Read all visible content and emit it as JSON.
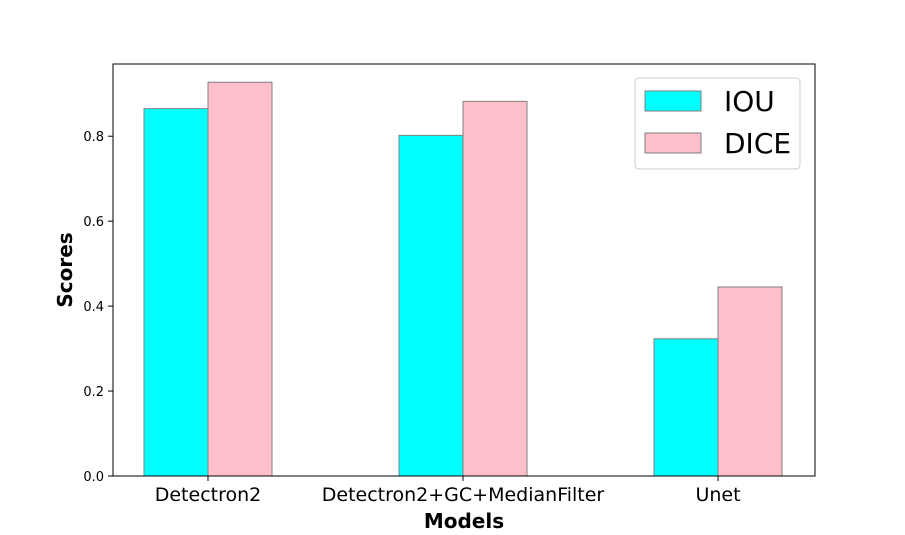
{
  "chart_data": {
    "type": "bar",
    "title": "",
    "xlabel": "Models",
    "ylabel": "Scores",
    "categories": [
      "Detectron2",
      "Detectron2+GC+MedianFilter",
      "Unet"
    ],
    "series": [
      {
        "name": "IOU",
        "values": [
          0.865,
          0.802,
          0.323
        ],
        "color": "#00ffff"
      },
      {
        "name": "DICE",
        "values": [
          0.927,
          0.882,
          0.445
        ],
        "color": "#ffc0cb"
      }
    ],
    "ylim": [
      0,
      0.97
    ],
    "yticks": [
      "0.0",
      "0.2",
      "0.4",
      "0.6",
      "0.8"
    ],
    "bar_edge_color": "#808080",
    "grid": false,
    "legend_position": "top-right"
  }
}
